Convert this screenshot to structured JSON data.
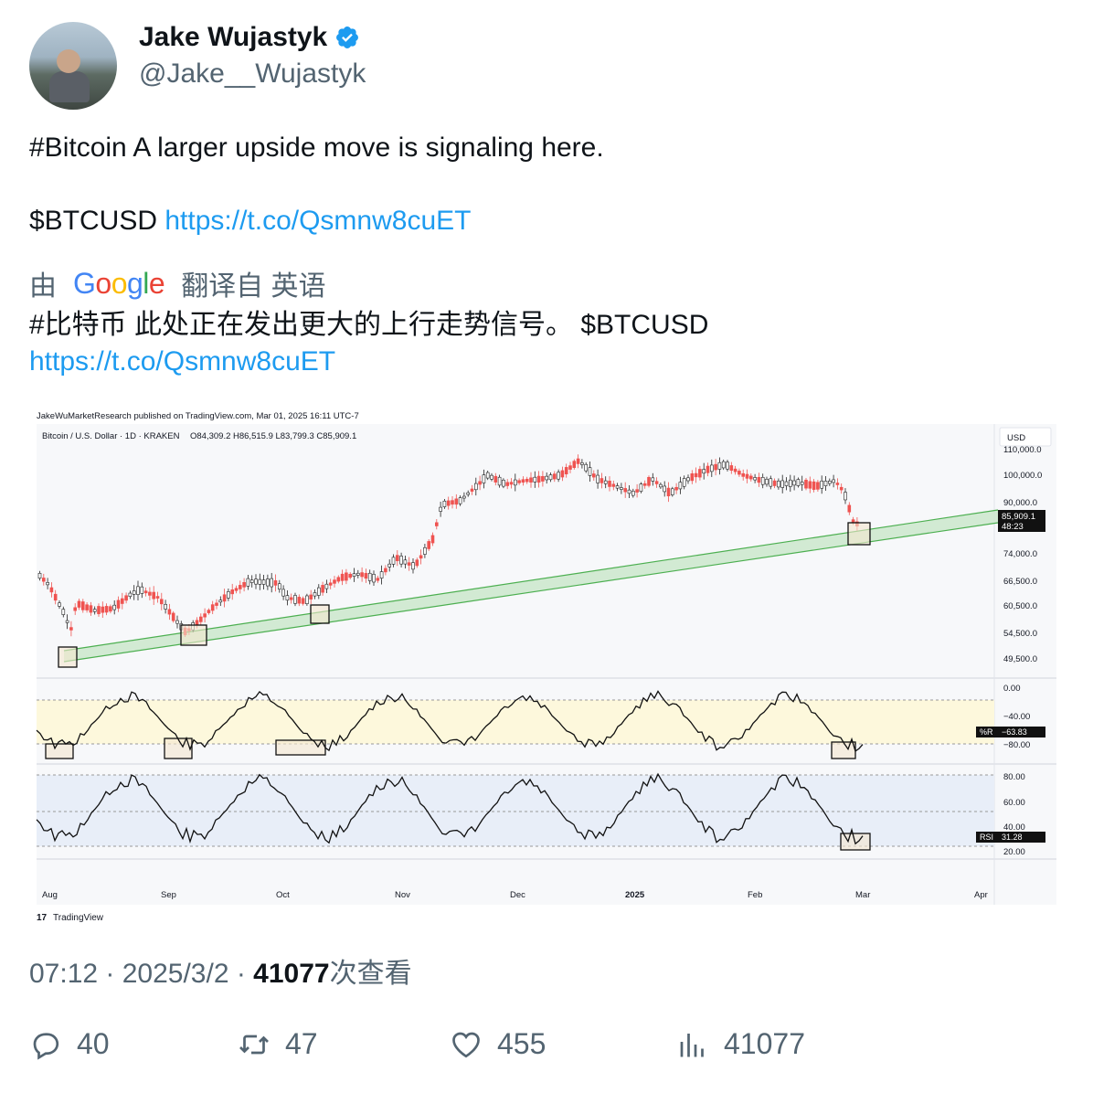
{
  "author": {
    "name": "Jake Wujastyk",
    "handle": "@Jake__Wujastyk"
  },
  "tweet": {
    "line1": "#Bitcoin A larger upside move is signaling here.",
    "line2_text": "$BTCUSD ",
    "link": "https://t.co/Qsmnw8cuET"
  },
  "translation": {
    "by": "由",
    "provider": "Google",
    "label": "翻译自 英语",
    "text": "#比特币 此处正在发出更大的上行走势信号。 $BTCUSD",
    "link": "https://t.co/Qsmnw8cuET"
  },
  "chart": {
    "publisher": "JakeWuMarketResearch published on TradingView.com, Mar 01, 2025 16:11 UTC-7",
    "symbol": "Bitcoin / U.S. Dollar · 1D · KRAKEN",
    "ohlc": "O84,309.2  H86,515.9  L83,799.3  C85,909.1",
    "currency": "USD",
    "price_ticks": [
      "110,000.0",
      "100,000.0",
      "90,000.0",
      "74,000.0",
      "66,500.0",
      "60,500.0",
      "54,500.0",
      "49,500.0"
    ],
    "last_price": "85,909.1",
    "countdown": "48:23",
    "wr_ticks": [
      "0.00",
      "−40.00",
      "−80.00"
    ],
    "wr_label": "%R",
    "wr_value": "−63.83",
    "rsi_ticks": [
      "80.00",
      "60.00",
      "40.00",
      "20.00"
    ],
    "rsi_label": "RSI",
    "rsi_value": "31.28",
    "x_ticks": [
      "Aug",
      "Sep",
      "Oct",
      "Nov",
      "Dec",
      "2025",
      "Feb",
      "Mar",
      "Apr"
    ],
    "brand": "TradingView",
    "colors": {
      "up": "#26a69a",
      "down": "#ef5350",
      "trend": "#4caf50",
      "wr_band": "#fdf8dc",
      "rsi_band": "#e8eef8"
    }
  },
  "meta": {
    "time": "07:12 · 2025/3/2 · ",
    "views": "41077",
    "views_label": "次查看"
  },
  "actions": {
    "replies": "40",
    "retweets": "47",
    "likes": "455",
    "views": "41077"
  }
}
